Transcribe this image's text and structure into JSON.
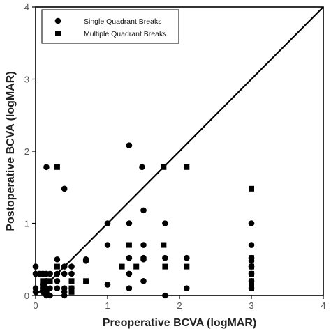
{
  "chart_data": {
    "type": "scatter",
    "xlabel": "Preoperative BCVA (logMAR)",
    "ylabel": "Postoperative BCVA (logMAR)",
    "xlim": [
      0,
      4
    ],
    "ylim": [
      0,
      4
    ],
    "x_ticks": [
      "0",
      "1",
      "2",
      "3",
      "4"
    ],
    "y_ticks": [
      "0",
      "1",
      "2",
      "3",
      "4"
    ],
    "grid": false,
    "legend_position": "top-left",
    "reference_line": "y = x",
    "series": [
      {
        "name": "Single Quadrant Breaks",
        "marker": "circle",
        "points": [
          [
            0,
            0.4
          ],
          [
            0,
            0.3
          ],
          [
            0,
            0.1
          ],
          [
            0,
            0.05
          ],
          [
            0.05,
            0.3
          ],
          [
            0.1,
            0.3
          ],
          [
            0.1,
            0.1
          ],
          [
            0.1,
            0.05
          ],
          [
            0.1,
            0.15
          ],
          [
            0.15,
            1.78
          ],
          [
            0.15,
            0.3
          ],
          [
            0.15,
            0.2
          ],
          [
            0.15,
            0.1
          ],
          [
            0.15,
            0.05
          ],
          [
            0.15,
            0
          ],
          [
            0.2,
            0.3
          ],
          [
            0.2,
            0.1
          ],
          [
            0.2,
            0
          ],
          [
            0.3,
            0.5
          ],
          [
            0.3,
            0.3
          ],
          [
            0.3,
            0.2
          ],
          [
            0.3,
            0.1
          ],
          [
            0.4,
            1.48
          ],
          [
            0.4,
            0.4
          ],
          [
            0.4,
            0.3
          ],
          [
            0.4,
            0.1
          ],
          [
            0.4,
            0.05
          ],
          [
            0.4,
            0
          ],
          [
            0.5,
            0.4
          ],
          [
            0.5,
            0.3
          ],
          [
            0.5,
            0.1
          ],
          [
            0.7,
            0.5
          ],
          [
            0.7,
            0.48
          ],
          [
            1.0,
            1.0
          ],
          [
            1.0,
            0.7
          ],
          [
            1.0,
            0.15
          ],
          [
            1.3,
            2.08
          ],
          [
            1.3,
            1.0
          ],
          [
            1.3,
            0.52
          ],
          [
            1.3,
            0.3
          ],
          [
            1.3,
            0.1
          ],
          [
            1.48,
            1.78
          ],
          [
            1.5,
            1.18
          ],
          [
            1.5,
            0.7
          ],
          [
            1.5,
            0.52
          ],
          [
            1.5,
            0.5
          ],
          [
            1.5,
            0.2
          ],
          [
            1.8,
            1.0
          ],
          [
            1.8,
            0.52
          ],
          [
            1.8,
            0
          ],
          [
            2.1,
            0.52
          ],
          [
            2.1,
            0.1
          ],
          [
            3.0,
            1.0
          ],
          [
            3.0,
            0.7
          ],
          [
            3.0,
            0.52
          ],
          [
            3.0,
            0.48
          ],
          [
            3.0,
            0.4
          ],
          [
            3.0,
            0.3
          ],
          [
            3.0,
            0.2
          ],
          [
            3.0,
            0.1
          ]
        ]
      },
      {
        "name": "Multiple Quadrant Breaks",
        "marker": "square",
        "points": [
          [
            0.3,
            1.78
          ],
          [
            0.3,
            0.4
          ],
          [
            0.1,
            0.3
          ],
          [
            0.1,
            0.2
          ],
          [
            0.1,
            0.1
          ],
          [
            0.2,
            0.2
          ],
          [
            0.5,
            0.2
          ],
          [
            0.5,
            0.1
          ],
          [
            0.5,
            0.05
          ],
          [
            0.7,
            0.2
          ],
          [
            1.2,
            0.4
          ],
          [
            1.3,
            0.7
          ],
          [
            1.4,
            0.4
          ],
          [
            1.78,
            1.78
          ],
          [
            1.78,
            0.7
          ],
          [
            1.8,
            0.4
          ],
          [
            2.1,
            1.78
          ],
          [
            2.1,
            0.4
          ],
          [
            3.0,
            1.48
          ],
          [
            3.0,
            0.52
          ],
          [
            3.0,
            0.4
          ],
          [
            3.0,
            0.3
          ],
          [
            3.0,
            0.2
          ],
          [
            3.0,
            0.15
          ],
          [
            3.0,
            0.1
          ]
        ]
      }
    ]
  }
}
